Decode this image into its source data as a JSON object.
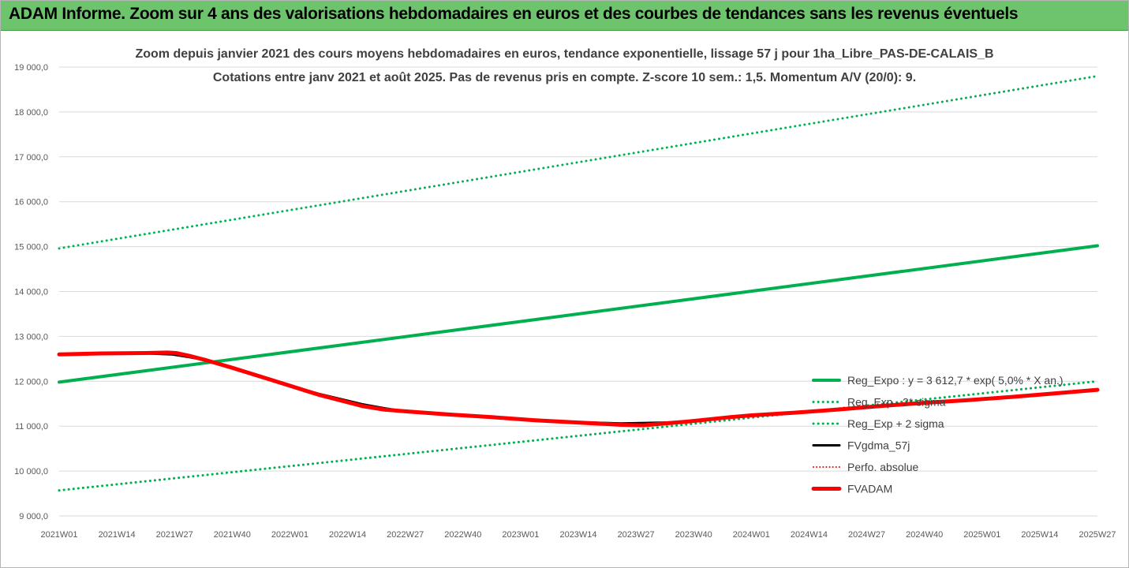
{
  "banner": {
    "title": "ADAM Informe. Zoom sur 4 ans des valorisations hebdomadaires en euros et des courbes de tendances sans les revenus éventuels",
    "background": "#6dc46d"
  },
  "chart_data": {
    "type": "line",
    "title": "Zoom depuis janvier 2021 des cours moyens hebdomadaires en euros, tendance exponentielle, lissage 57 j pour 1ha_Libre_PAS-DE-CALAIS_B",
    "subtitle": "Cotations entre janv 2021 et août 2025.  Pas de revenus pris en compte. Z-score 10 sem.: 1,5. Momentum A/V (20/0): 9.",
    "x_tick_labels": [
      "2021W01",
      "2021W14",
      "2021W27",
      "2021W40",
      "2022W01",
      "2022W14",
      "2022W27",
      "2022W40",
      "2023W01",
      "2023W14",
      "2023W27",
      "2023W40",
      "2024W01",
      "2024W14",
      "2024W27",
      "2024W40",
      "2025W01",
      "2025W14",
      "2025W27"
    ],
    "y_tick_labels": [
      "9 000,0",
      "10 000,0",
      "11 000,0",
      "12 000,0",
      "13 000,0",
      "14 000,0",
      "15 000,0",
      "16 000,0",
      "17 000,0",
      "18 000,0",
      "19 000,0"
    ],
    "ylim": [
      9000,
      19000
    ],
    "grid": "horizontal",
    "legend_position": "bottom-right",
    "series": [
      {
        "name": "Reg_Expo : y = 3 612,7 * exp( 5,0% * X an.)",
        "color": "#00b050",
        "style": "solid",
        "width": 4,
        "x": [
          0,
          240
        ],
        "y": [
          11980,
          15020
        ]
      },
      {
        "name": "Reg_Exp - 2* sigma",
        "color": "#00b050",
        "style": "dotted",
        "width": 3,
        "x": [
          0,
          240
        ],
        "y": [
          9570,
          12000
        ]
      },
      {
        "name": "Reg_Exp + 2 sigma",
        "color": "#00b050",
        "style": "dotted",
        "width": 3,
        "x": [
          0,
          240
        ],
        "y": [
          14960,
          18800
        ]
      },
      {
        "name": "FVgdma_57j",
        "color": "#000000",
        "style": "solid",
        "width": 3,
        "x": [
          0,
          10,
          20,
          26,
          30,
          34,
          40,
          50,
          60,
          70,
          75,
          80,
          90,
          100,
          110,
          120,
          130,
          140,
          145,
          150,
          155,
          160,
          170,
          180,
          190,
          200,
          210,
          220,
          230,
          240
        ],
        "y": [
          12600,
          12620,
          12620,
          12600,
          12540,
          12470,
          12300,
          12000,
          11720,
          11490,
          11400,
          11330,
          11260,
          11200,
          11140,
          11090,
          11060,
          11080,
          11100,
          11150,
          11200,
          11240,
          11300,
          11370,
          11450,
          11520,
          11580,
          11650,
          11730,
          11810
        ]
      },
      {
        "name": "Perfo. absolue",
        "color": "#ff0000",
        "style": "dotted",
        "width": 2,
        "x": [
          0,
          10,
          20,
          25,
          27,
          30,
          34,
          40,
          50,
          60,
          70,
          75,
          80,
          90,
          100,
          110,
          120,
          130,
          135,
          140,
          145,
          150,
          155,
          160,
          170,
          180,
          190,
          200,
          210,
          220,
          230,
          240
        ],
        "y": [
          12600,
          12620,
          12630,
          12640,
          12630,
          12570,
          12470,
          12300,
          12000,
          11700,
          11450,
          11370,
          11330,
          11260,
          11200,
          11130,
          11080,
          11030,
          11020,
          11060,
          11100,
          11150,
          11200,
          11240,
          11300,
          11370,
          11450,
          11520,
          11580,
          11650,
          11730,
          11810
        ]
      },
      {
        "name": "FVADAM",
        "color": "#ff0000",
        "style": "solid",
        "width": 5,
        "x": [
          0,
          10,
          20,
          25,
          27,
          30,
          34,
          40,
          50,
          60,
          70,
          75,
          80,
          90,
          100,
          110,
          120,
          130,
          135,
          140,
          145,
          150,
          155,
          160,
          170,
          180,
          190,
          200,
          210,
          220,
          230,
          240
        ],
        "y": [
          12600,
          12620,
          12630,
          12640,
          12630,
          12570,
          12470,
          12300,
          12000,
          11700,
          11450,
          11370,
          11330,
          11260,
          11200,
          11130,
          11080,
          11030,
          11020,
          11060,
          11100,
          11150,
          11200,
          11240,
          11300,
          11370,
          11450,
          11520,
          11580,
          11650,
          11730,
          11810
        ]
      }
    ]
  }
}
